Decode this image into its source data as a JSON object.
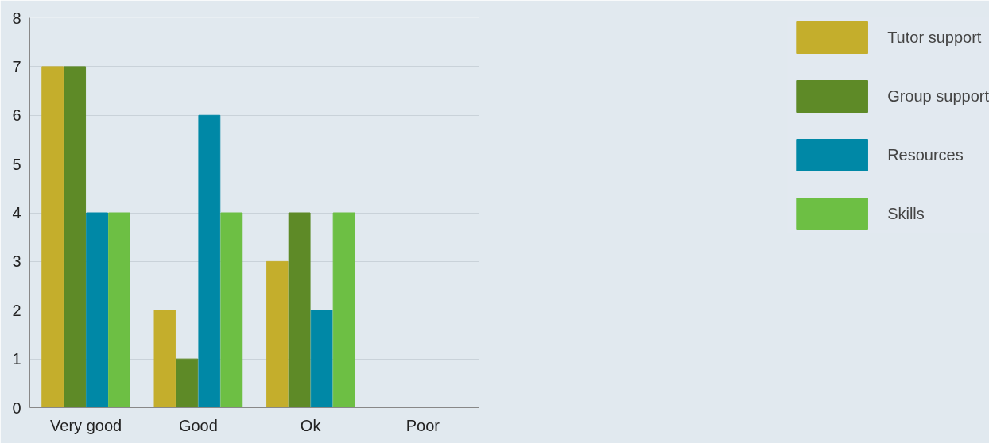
{
  "chart_data": {
    "type": "bar",
    "categories": [
      "Very good",
      "Good",
      "Ok",
      "Poor"
    ],
    "series": [
      {
        "name": "Tutor support",
        "color": "#c4ae2c",
        "values": [
          7,
          2,
          3,
          0
        ]
      },
      {
        "name": "Group support",
        "color": "#5e8a27",
        "values": [
          7,
          1,
          4,
          0
        ]
      },
      {
        "name": "Resources",
        "color": "#0088a6",
        "values": [
          4,
          6,
          2,
          0
        ]
      },
      {
        "name": "Skills",
        "color": "#6dbf44",
        "values": [
          4,
          4,
          4,
          0
        ]
      }
    ],
    "ylim": [
      0,
      8
    ],
    "yticks": [
      0,
      1,
      2,
      3,
      4,
      5,
      6,
      7,
      8
    ],
    "grid": "y",
    "legend": "right"
  }
}
